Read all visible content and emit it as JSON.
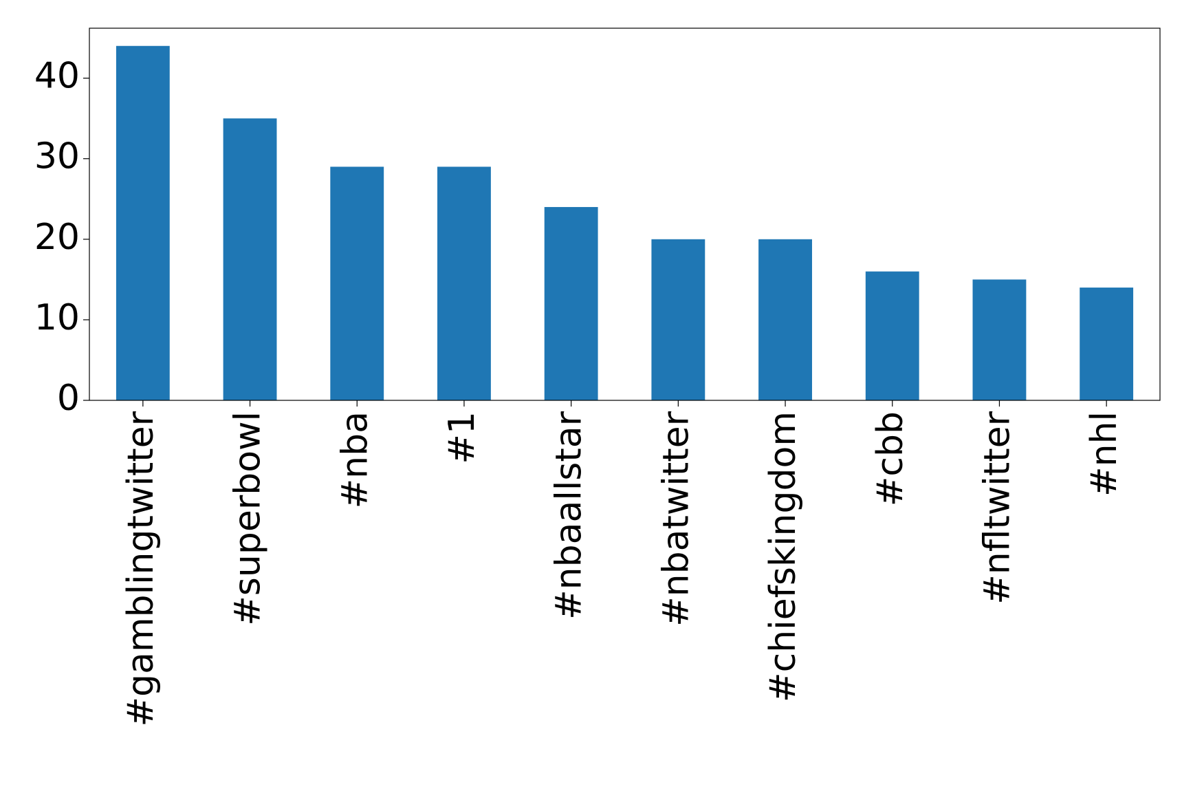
{
  "chart_data": {
    "type": "bar",
    "categories": [
      "#gamblingtwitter",
      "#superbowl",
      "#nba",
      "#1",
      "#nbaallstar",
      "#nbatwitter",
      "#chiefskingdom",
      "#cbb",
      "#nfltwitter",
      "#nhl"
    ],
    "values": [
      44,
      35,
      29,
      29,
      24,
      20,
      20,
      16,
      15,
      14
    ],
    "color": "#1f77b4",
    "ylim": [
      0,
      46.2
    ],
    "yticks": [
      0,
      10,
      20,
      30,
      40
    ],
    "grid": false
  }
}
